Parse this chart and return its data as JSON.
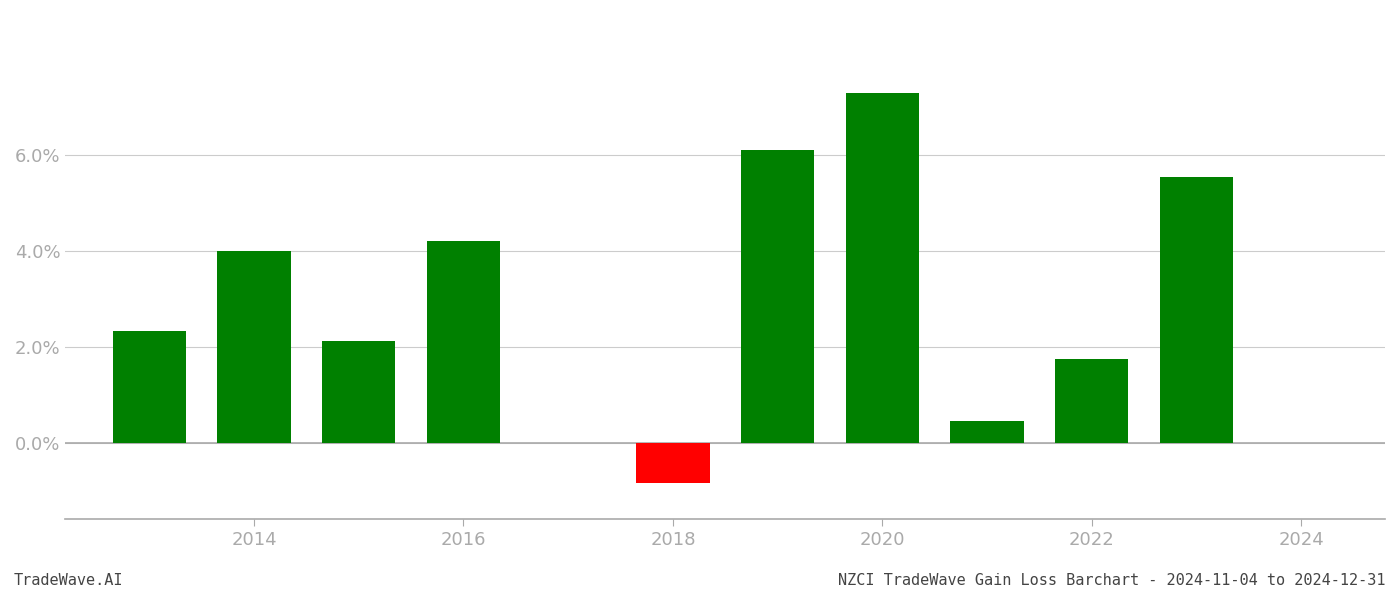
{
  "years": [
    2013,
    2014,
    2015,
    2016,
    2017,
    2018,
    2019,
    2020,
    2021,
    2022,
    2023
  ],
  "values": [
    0.0233,
    0.04,
    0.0213,
    0.042,
    0.0,
    -0.0085,
    0.061,
    0.073,
    0.0045,
    0.0175,
    0.0555
  ],
  "colors": [
    "#008000",
    "#008000",
    "#008000",
    "#008000",
    "#008000",
    "#ff0000",
    "#008000",
    "#008000",
    "#008000",
    "#008000",
    "#008000"
  ],
  "bar_width": 0.7,
  "xlim": [
    2012.2,
    2024.8
  ],
  "ylim": [
    -0.016,
    0.088
  ],
  "yticks": [
    0.0,
    0.02,
    0.04,
    0.06
  ],
  "xticks": [
    2014,
    2016,
    2018,
    2020,
    2022,
    2024
  ],
  "grid_color": "#cccccc",
  "axis_color": "#aaaaaa",
  "tick_color": "#aaaaaa",
  "footer_left": "TradeWave.AI",
  "footer_right": "NZCI TradeWave Gain Loss Barchart - 2024-11-04 to 2024-12-31",
  "background_color": "#ffffff",
  "font_size_ticks": 13,
  "font_size_footer": 11
}
